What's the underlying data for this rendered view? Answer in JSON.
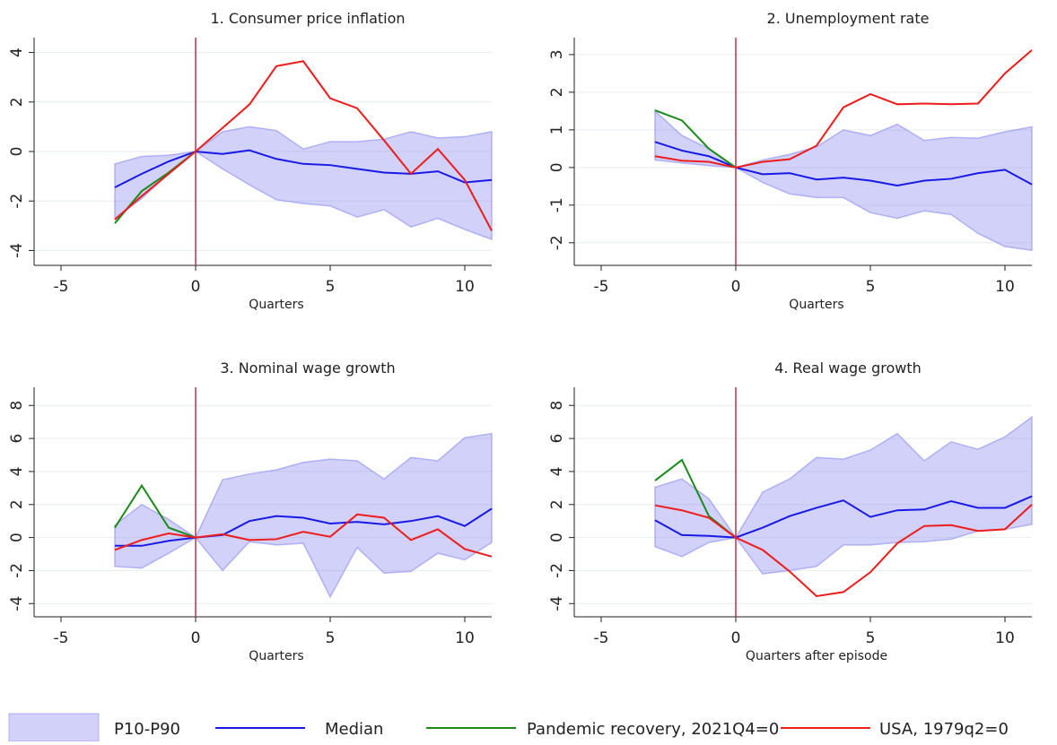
{
  "chart_data": [
    {
      "type": "line",
      "title": "1. Consumer price inflation",
      "x_label": "Quarters",
      "x": [
        -3,
        -2,
        -1,
        0,
        1,
        2,
        3,
        4,
        5,
        6,
        7,
        8,
        9,
        10,
        11
      ],
      "xlim": [
        -6,
        11
      ],
      "xticks": [
        -5,
        0,
        5,
        10
      ],
      "ylim": [
        -4.6,
        4.6
      ],
      "yticks": [
        -4,
        -2,
        0,
        2,
        4
      ],
      "grid": true,
      "vline": 0,
      "series": [
        {
          "lower": [
            -2.7,
            -1.9,
            -0.9,
            0,
            -0.7,
            -1.35,
            -1.95,
            -2.1,
            -2.2,
            -2.65,
            -2.35,
            -3.05,
            -2.7,
            -3.15,
            -3.55
          ],
          "upper": [
            -0.5,
            -0.2,
            -0.15,
            0,
            0.8,
            1.0,
            0.85,
            0.1,
            0.4,
            0.4,
            0.5,
            0.8,
            0.55,
            0.6,
            0.8
          ]
        },
        {
          "values": [
            -1.45,
            -0.9,
            -0.4,
            0,
            -0.1,
            0.05,
            -0.3,
            -0.5,
            -0.55,
            -0.7,
            -0.85,
            -0.9,
            -0.8,
            -1.25,
            -1.15
          ]
        },
        {
          "values": [
            -2.9,
            -1.6,
            -0.85,
            0,
            null,
            null,
            null,
            null,
            null,
            null,
            null,
            null,
            null,
            null,
            null
          ]
        },
        {
          "values": [
            -2.75,
            -1.8,
            -0.9,
            0,
            0.95,
            1.9,
            3.45,
            3.65,
            2.15,
            1.75,
            0.45,
            -0.9,
            0.1,
            -1.15,
            -3.2
          ]
        }
      ]
    },
    {
      "type": "line",
      "title": "2. Unemployment rate",
      "x_label": "Quarters",
      "x": [
        -3,
        -2,
        -1,
        0,
        1,
        2,
        3,
        4,
        5,
        6,
        7,
        8,
        9,
        10,
        11
      ],
      "xlim": [
        -6,
        11
      ],
      "xticks": [
        -5,
        0,
        5,
        10
      ],
      "ylim": [
        -2.6,
        3.45
      ],
      "yticks": [
        -2,
        -1,
        0,
        1,
        2,
        3
      ],
      "grid": true,
      "vline": 0,
      "series": [
        {
          "lower": [
            0.2,
            0.12,
            0.05,
            0,
            -0.4,
            -0.7,
            -0.8,
            -0.8,
            -1.2,
            -1.35,
            -1.15,
            -1.25,
            -1.75,
            -2.1,
            -2.2
          ],
          "upper": [
            1.5,
            0.85,
            0.5,
            0,
            0.2,
            0.35,
            0.55,
            1.0,
            0.85,
            1.15,
            0.72,
            0.8,
            0.78,
            0.95,
            1.08
          ]
        },
        {
          "values": [
            0.68,
            0.45,
            0.3,
            0,
            -0.18,
            -0.15,
            -0.32,
            -0.27,
            -0.35,
            -0.48,
            -0.35,
            -0.3,
            -0.15,
            -0.06,
            -0.45
          ]
        },
        {
          "values": [
            1.52,
            1.25,
            0.5,
            0,
            null,
            null,
            null,
            null,
            null,
            null,
            null,
            null,
            null,
            null,
            null
          ]
        },
        {
          "values": [
            0.3,
            0.18,
            0.15,
            0,
            0.15,
            0.22,
            0.58,
            1.6,
            1.95,
            1.68,
            1.7,
            1.68,
            1.7,
            2.5,
            3.12
          ]
        }
      ]
    },
    {
      "type": "line",
      "title": "3. Nominal wage growth",
      "x_label": "Quarters",
      "x": [
        -3,
        -2,
        -1,
        0,
        1,
        2,
        3,
        4,
        5,
        6,
        7,
        8,
        9,
        10,
        11
      ],
      "xlim": [
        -6,
        11
      ],
      "xticks": [
        -5,
        0,
        5,
        10
      ],
      "ylim": [
        -4.8,
        9.1
      ],
      "yticks": [
        -4,
        -2,
        0,
        2,
        4,
        6,
        8
      ],
      "grid": true,
      "vline": 0,
      "series": [
        {
          "lower": [
            -1.75,
            -1.85,
            -0.95,
            0,
            -2.0,
            -0.25,
            -0.45,
            -0.35,
            -3.6,
            -0.6,
            -2.15,
            -2.05,
            -0.95,
            -1.35,
            -0.3
          ],
          "upper": [
            0.75,
            2.0,
            1.1,
            0,
            3.5,
            3.85,
            4.1,
            4.55,
            4.75,
            4.65,
            3.55,
            4.85,
            4.65,
            6.05,
            6.3
          ]
        },
        {
          "values": [
            -0.5,
            -0.5,
            -0.2,
            0,
            0.15,
            1.0,
            1.3,
            1.2,
            0.85,
            0.95,
            0.8,
            1.0,
            1.3,
            0.7,
            1.75
          ]
        },
        {
          "values": [
            0.6,
            3.15,
            0.6,
            0,
            null,
            null,
            null,
            null,
            null,
            null,
            null,
            null,
            null,
            null,
            null
          ]
        },
        {
          "values": [
            -0.75,
            -0.15,
            0.25,
            0,
            0.2,
            -0.15,
            -0.1,
            0.35,
            0.05,
            1.4,
            1.2,
            -0.15,
            0.5,
            -0.7,
            -1.15
          ]
        }
      ]
    },
    {
      "type": "line",
      "title": "4. Real wage growth",
      "x_label": "Quarters after episode",
      "x": [
        -3,
        -2,
        -1,
        0,
        1,
        2,
        3,
        4,
        5,
        6,
        7,
        8,
        9,
        10,
        11
      ],
      "xlim": [
        -6,
        11
      ],
      "xticks": [
        -5,
        0,
        5,
        10
      ],
      "ylim": [
        -4.8,
        9.1
      ],
      "yticks": [
        -4,
        -2,
        0,
        2,
        4,
        6,
        8
      ],
      "grid": true,
      "vline": 0,
      "series": [
        {
          "lower": [
            -0.55,
            -1.15,
            -0.3,
            0,
            -2.2,
            -2.0,
            -1.75,
            -0.45,
            -0.45,
            -0.3,
            -0.25,
            -0.1,
            0.4,
            0.5,
            0.8
          ],
          "upper": [
            3.05,
            3.55,
            2.35,
            0,
            2.75,
            3.55,
            4.85,
            4.75,
            5.3,
            6.3,
            4.65,
            5.8,
            5.35,
            6.1,
            7.3
          ]
        },
        {
          "values": [
            1.05,
            0.15,
            0.1,
            0,
            0.6,
            1.3,
            1.8,
            2.25,
            1.25,
            1.65,
            1.7,
            2.2,
            1.8,
            1.8,
            2.5
          ]
        },
        {
          "values": [
            3.45,
            4.7,
            1.3,
            0,
            null,
            null,
            null,
            null,
            null,
            null,
            null,
            null,
            null,
            null,
            null
          ]
        },
        {
          "values": [
            1.95,
            1.65,
            1.2,
            0,
            -0.75,
            -2.05,
            -3.55,
            -3.3,
            -2.1,
            -0.35,
            0.7,
            0.75,
            0.4,
            0.5,
            2.0
          ]
        }
      ]
    }
  ],
  "legend": [
    {
      "name": "P10-P90",
      "color": "#8c8cf0"
    },
    {
      "name": "Median",
      "color": "#1a1ae6"
    },
    {
      "name": "Pandemic recovery, 2021Q4=0",
      "color": "#1a8a1a"
    },
    {
      "name": "USA, 1979q2=0",
      "color": "#ee1c1c"
    }
  ],
  "vline_color": "#c0304a"
}
